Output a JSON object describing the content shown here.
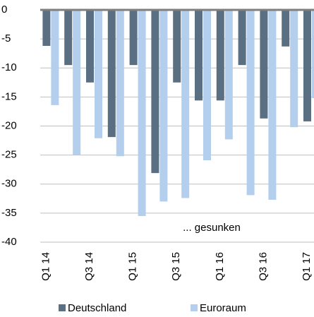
{
  "chart_data": {
    "type": "bar",
    "categories": [
      "Q1 14",
      null,
      "Q3 14",
      null,
      "Q1 15",
      null,
      "Q3 15",
      null,
      "Q1 16",
      null,
      "Q3 16",
      null,
      "Q1 17"
    ],
    "series": [
      {
        "name": "Deutschland",
        "color": "#5b6f82",
        "values": [
          -6.2,
          -9.5,
          -12.5,
          -21.9,
          -9.5,
          -28.1,
          -12.5,
          -15.6,
          -15.6,
          -9.5,
          -18.7,
          -6.3,
          -19.2
        ]
      },
      {
        "name": "Euroraum",
        "color": "#b4cfee",
        "values": [
          -16.4,
          -25.0,
          -22.1,
          -25.2,
          -35.5,
          -33.0,
          -32.4,
          -25.9,
          -22.3,
          -31.9,
          -32.7,
          -20.2,
          -15.2
        ]
      }
    ],
    "annotation": "... gesunken",
    "ylim": [
      -40,
      0
    ],
    "yticks": [
      0,
      -5,
      -10,
      -15,
      -20,
      -25,
      -30,
      -35,
      -40
    ],
    "grid": true
  }
}
